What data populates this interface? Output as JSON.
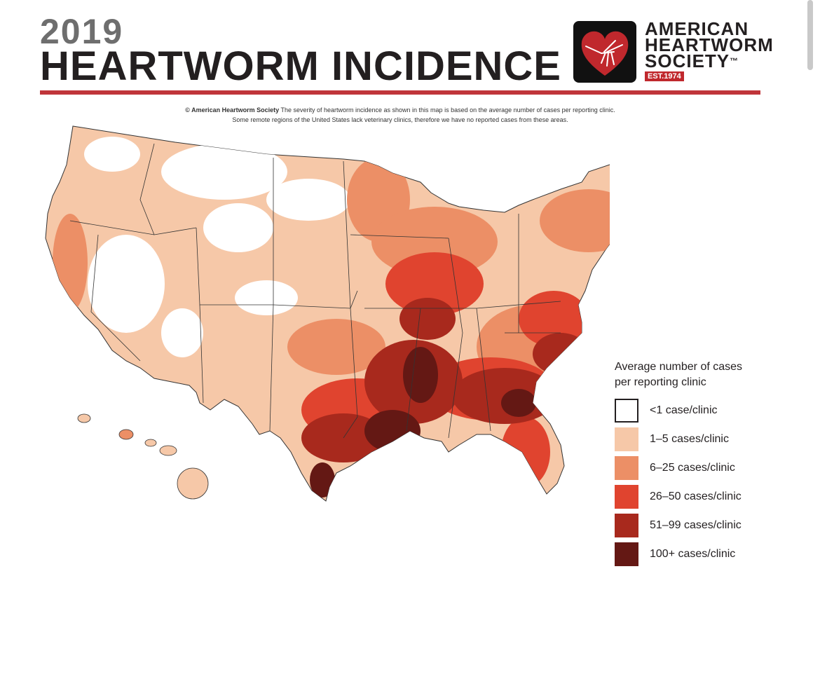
{
  "header": {
    "year": "2019",
    "title": "HEARTWORM INCIDENCE"
  },
  "logo": {
    "line1": "AMERICAN",
    "line2": "HEARTWORM",
    "line3": "SOCIETY",
    "trademark": "™",
    "established": "EST.1974"
  },
  "caption": {
    "bold": "© American Heartworm Society",
    "line1": " The severity of heartworm incidence as shown in this map is based on the average number of cases per reporting clinic.",
    "line2": "Some remote regions of the United States lack veterinary clinics, therefore we have no reported cases from these areas."
  },
  "legend": {
    "title_line1": "Average number of cases",
    "title_line2": "per reporting clinic",
    "items": [
      {
        "label": "<1 case/clinic",
        "color": "#ffffff"
      },
      {
        "label": "1–5 cases/clinic",
        "color": "#f6c8a8"
      },
      {
        "label": "6–25 cases/clinic",
        "color": "#ec8f66"
      },
      {
        "label": "26–50 cases/clinic",
        "color": "#e0442f"
      },
      {
        "label": "51–99 cases/clinic",
        "color": "#a8291d"
      },
      {
        "label": "100+ cases/clinic",
        "color": "#641814"
      }
    ]
  },
  "colors": {
    "title_year": "#6e6e6e",
    "title": "#231f20",
    "rule": "#c0353a",
    "border": "#333333"
  }
}
